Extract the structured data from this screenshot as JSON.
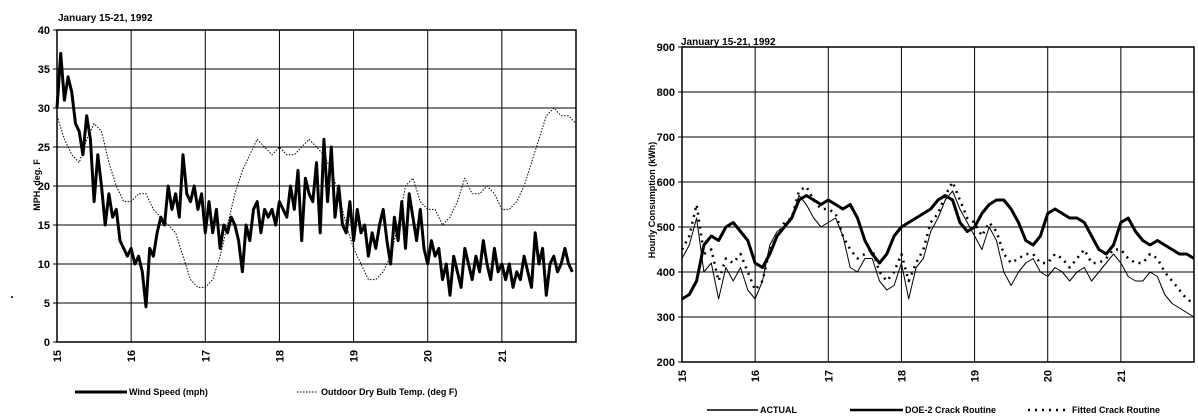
{
  "chart_data": [
    {
      "type": "line",
      "title": "January 15-21, 1992",
      "xlabel": "",
      "ylabel": "MPH, deg. F",
      "xlim": [
        15,
        22
      ],
      "ylim": [
        0,
        40
      ],
      "xticks": [
        "15",
        "16",
        "17",
        "18",
        "19",
        "20",
        "21"
      ],
      "yticks": [
        "0",
        "5",
        "10",
        "15",
        "20",
        "25",
        "30",
        "35",
        "40"
      ],
      "grid": true,
      "legend_position": "bottom",
      "series": [
        {
          "name": "Wind Speed (mph)",
          "style": "solid-thick",
          "x": [
            15.0,
            15.05,
            15.1,
            15.15,
            15.2,
            15.25,
            15.3,
            15.35,
            15.4,
            15.45,
            15.5,
            15.55,
            15.6,
            15.65,
            15.7,
            15.75,
            15.8,
            15.85,
            15.9,
            15.95,
            16.0,
            16.05,
            16.1,
            16.15,
            16.2,
            16.25,
            16.3,
            16.35,
            16.4,
            16.45,
            16.5,
            16.55,
            16.6,
            16.65,
            16.7,
            16.75,
            16.8,
            16.85,
            16.9,
            16.95,
            17.0,
            17.05,
            17.1,
            17.15,
            17.2,
            17.25,
            17.3,
            17.35,
            17.4,
            17.45,
            17.5,
            17.55,
            17.6,
            17.65,
            17.7,
            17.75,
            17.8,
            17.85,
            17.9,
            17.95,
            18.0,
            18.05,
            18.1,
            18.15,
            18.2,
            18.25,
            18.3,
            18.35,
            18.4,
            18.45,
            18.5,
            18.55,
            18.6,
            18.65,
            18.7,
            18.75,
            18.8,
            18.85,
            18.9,
            18.95,
            19.0,
            19.05,
            19.1,
            19.15,
            19.2,
            19.25,
            19.3,
            19.35,
            19.4,
            19.45,
            19.5,
            19.55,
            19.6,
            19.65,
            19.7,
            19.75,
            19.8,
            19.85,
            19.9,
            19.95,
            20.0,
            20.05,
            20.1,
            20.15,
            20.2,
            20.25,
            20.3,
            20.35,
            20.4,
            20.45,
            20.5,
            20.55,
            20.6,
            20.65,
            20.7,
            20.75,
            20.8,
            20.85,
            20.9,
            20.95,
            21.0,
            21.05,
            21.1,
            21.15,
            21.2,
            21.25,
            21.3,
            21.35,
            21.4,
            21.45,
            21.5,
            21.55,
            21.6,
            21.65,
            21.7,
            21.75,
            21.8,
            21.85,
            21.9,
            21.95
          ],
          "y": [
            30,
            37,
            31,
            34,
            32,
            28,
            27,
            24,
            29,
            26,
            18,
            24,
            20,
            15,
            19,
            16,
            17,
            13,
            12,
            11,
            12,
            10,
            11,
            9,
            4.5,
            12,
            11,
            14,
            16,
            15,
            20,
            17,
            19,
            16,
            24,
            19,
            18,
            20,
            17,
            19,
            14,
            18,
            14,
            17,
            12,
            15,
            14,
            16,
            15,
            13,
            9,
            15,
            13,
            17,
            18,
            14,
            17,
            16,
            17,
            15,
            18,
            17,
            16,
            20,
            17,
            22,
            13,
            21,
            19,
            18,
            23,
            14,
            26,
            18,
            25,
            16,
            20,
            15,
            14,
            18,
            13,
            17,
            14,
            15,
            11,
            14,
            12,
            15,
            17,
            13,
            10,
            16,
            13,
            18,
            12,
            19,
            16,
            13,
            17,
            12,
            10,
            13,
            11,
            12,
            8,
            10,
            6,
            11,
            9,
            7,
            12,
            10,
            8,
            11,
            9,
            13,
            10,
            8,
            12,
            9,
            10,
            8,
            10,
            7,
            9,
            8,
            11,
            9,
            7,
            14,
            10,
            12,
            6,
            10,
            11,
            9,
            10,
            12,
            10,
            9
          ]
        },
        {
          "name": "Outdoor Dry Bulb Temp. (deg F)",
          "style": "dotted-thin",
          "x": [
            15.0,
            15.1,
            15.2,
            15.3,
            15.4,
            15.5,
            15.6,
            15.7,
            15.8,
            15.9,
            16.0,
            16.1,
            16.2,
            16.3,
            16.4,
            16.5,
            16.6,
            16.7,
            16.8,
            16.9,
            17.0,
            17.1,
            17.2,
            17.3,
            17.4,
            17.5,
            17.6,
            17.7,
            17.8,
            17.9,
            18.0,
            18.1,
            18.2,
            18.3,
            18.4,
            18.5,
            18.6,
            18.7,
            18.8,
            18.9,
            19.0,
            19.1,
            19.2,
            19.3,
            19.4,
            19.5,
            19.6,
            19.7,
            19.8,
            19.9,
            20.0,
            20.1,
            20.2,
            20.3,
            20.4,
            20.5,
            20.6,
            20.7,
            20.8,
            20.9,
            21.0,
            21.1,
            21.2,
            21.3,
            21.4,
            21.5,
            21.6,
            21.7,
            21.8,
            21.9,
            22.0
          ],
          "y": [
            29,
            26,
            24,
            23,
            26,
            28,
            27,
            23,
            20,
            18,
            18,
            19,
            19,
            17,
            16,
            15,
            14,
            11,
            8,
            7,
            7,
            8,
            11,
            15,
            19,
            22,
            24,
            26,
            25,
            24,
            25,
            24,
            24,
            25,
            26,
            25,
            24,
            22,
            19,
            15,
            12,
            10,
            8,
            8,
            9,
            11,
            15,
            20,
            21,
            18,
            17,
            17,
            15,
            16,
            18,
            21,
            19,
            19,
            20,
            19,
            17,
            17,
            18,
            20,
            23,
            26,
            29,
            30,
            29,
            29,
            28
          ]
        }
      ]
    },
    {
      "type": "line",
      "title": "January 15-21, 1992",
      "xlabel": "",
      "ylabel": "Hourly Consumption (kWh)",
      "xlim": [
        15,
        22
      ],
      "ylim": [
        200,
        900
      ],
      "xticks": [
        "15",
        "16",
        "17",
        "18",
        "19",
        "20",
        "21"
      ],
      "yticks": [
        "200",
        "300",
        "400",
        "500",
        "600",
        "700",
        "800",
        "900"
      ],
      "grid": true,
      "legend_position": "bottom",
      "series": [
        {
          "name": "ACTUAL",
          "style": "solid-thin",
          "x": [
            15.0,
            15.1,
            15.2,
            15.3,
            15.4,
            15.5,
            15.6,
            15.7,
            15.8,
            15.9,
            16.0,
            16.1,
            16.2,
            16.3,
            16.4,
            16.5,
            16.6,
            16.7,
            16.8,
            16.9,
            17.0,
            17.1,
            17.2,
            17.3,
            17.4,
            17.5,
            17.6,
            17.7,
            17.8,
            17.9,
            18.0,
            18.1,
            18.2,
            18.3,
            18.4,
            18.5,
            18.6,
            18.7,
            18.8,
            18.9,
            19.0,
            19.1,
            19.2,
            19.3,
            19.4,
            19.5,
            19.6,
            19.7,
            19.8,
            19.9,
            20.0,
            20.1,
            20.2,
            20.3,
            20.4,
            20.5,
            20.6,
            20.7,
            20.8,
            20.9,
            21.0,
            21.1,
            21.2,
            21.3,
            21.4,
            21.5,
            21.6,
            21.7,
            21.8,
            21.9,
            22.0
          ],
          "y": [
            430,
            460,
            520,
            400,
            420,
            340,
            410,
            380,
            410,
            360,
            340,
            380,
            460,
            490,
            500,
            520,
            570,
            550,
            520,
            500,
            510,
            520,
            480,
            410,
            400,
            430,
            430,
            380,
            360,
            370,
            420,
            340,
            410,
            430,
            490,
            520,
            560,
            580,
            540,
            510,
            480,
            450,
            500,
            470,
            400,
            370,
            400,
            420,
            430,
            400,
            390,
            410,
            400,
            380,
            400,
            410,
            380,
            400,
            420,
            440,
            420,
            390,
            380,
            380,
            400,
            390,
            350,
            330,
            320,
            310,
            300
          ]
        },
        {
          "name": "DOE-2 Crack Routine",
          "style": "solid-thick",
          "x": [
            15.0,
            15.1,
            15.2,
            15.3,
            15.4,
            15.5,
            15.6,
            15.7,
            15.8,
            15.9,
            16.0,
            16.1,
            16.2,
            16.3,
            16.4,
            16.5,
            16.6,
            16.7,
            16.8,
            16.9,
            17.0,
            17.1,
            17.2,
            17.3,
            17.4,
            17.5,
            17.6,
            17.7,
            17.8,
            17.9,
            18.0,
            18.1,
            18.2,
            18.3,
            18.4,
            18.5,
            18.6,
            18.7,
            18.8,
            18.9,
            19.0,
            19.1,
            19.2,
            19.3,
            19.4,
            19.5,
            19.6,
            19.7,
            19.8,
            19.9,
            20.0,
            20.1,
            20.2,
            20.3,
            20.4,
            20.5,
            20.6,
            20.7,
            20.8,
            20.9,
            21.0,
            21.1,
            21.2,
            21.3,
            21.4,
            21.5,
            21.6,
            21.7,
            21.8,
            21.9,
            22.0
          ],
          "y": [
            340,
            350,
            380,
            460,
            480,
            470,
            500,
            510,
            490,
            470,
            420,
            410,
            440,
            480,
            500,
            520,
            560,
            570,
            560,
            550,
            560,
            550,
            540,
            550,
            520,
            470,
            440,
            420,
            440,
            480,
            500,
            510,
            520,
            530,
            540,
            560,
            570,
            560,
            510,
            490,
            500,
            530,
            550,
            560,
            560,
            540,
            510,
            470,
            460,
            480,
            530,
            540,
            530,
            520,
            520,
            510,
            480,
            450,
            440,
            460,
            510,
            520,
            490,
            470,
            460,
            470,
            460,
            450,
            440,
            440,
            430
          ]
        },
        {
          "name": "Fitted Crack Routine",
          "style": "dotted-thick",
          "x": [
            15.0,
            15.1,
            15.2,
            15.3,
            15.4,
            15.5,
            15.6,
            15.7,
            15.8,
            15.9,
            16.0,
            16.1,
            16.2,
            16.3,
            16.4,
            16.5,
            16.6,
            16.7,
            16.8,
            16.9,
            17.0,
            17.1,
            17.2,
            17.3,
            17.4,
            17.5,
            17.6,
            17.7,
            17.8,
            17.9,
            18.0,
            18.1,
            18.2,
            18.3,
            18.4,
            18.5,
            18.6,
            18.7,
            18.8,
            18.9,
            19.0,
            19.1,
            19.2,
            19.3,
            19.4,
            19.5,
            19.6,
            19.7,
            19.8,
            19.9,
            20.0,
            20.1,
            20.2,
            20.3,
            20.4,
            20.5,
            20.6,
            20.7,
            20.8,
            20.9,
            21.0,
            21.1,
            21.2,
            21.3,
            21.4,
            21.5,
            21.6,
            21.7,
            21.8,
            21.9,
            22.0
          ],
          "y": [
            450,
            480,
            550,
            440,
            450,
            380,
            430,
            420,
            440,
            400,
            360,
            380,
            450,
            480,
            510,
            520,
            580,
            590,
            560,
            540,
            540,
            530,
            480,
            450,
            430,
            440,
            450,
            400,
            380,
            400,
            440,
            380,
            420,
            450,
            510,
            530,
            570,
            600,
            560,
            520,
            510,
            480,
            510,
            490,
            440,
            420,
            430,
            440,
            440,
            420,
            420,
            440,
            430,
            410,
            430,
            450,
            420,
            420,
            430,
            450,
            450,
            430,
            420,
            420,
            440,
            430,
            400,
            380,
            360,
            340,
            330
          ]
        }
      ]
    }
  ],
  "left_chart": {
    "title": "January 15-21, 1992",
    "ylabel": "MPH, deg. F",
    "legend": [
      "Wind Speed (mph)",
      "Outdoor Dry Bulb Temp. (deg F)"
    ]
  },
  "right_chart": {
    "title": "January 15-21, 1992",
    "ylabel": "Hourly Consumption (kWh)",
    "legend": [
      "ACTUAL",
      "DOE-2 Crack Routine",
      "Fitted Crack Routine"
    ]
  }
}
